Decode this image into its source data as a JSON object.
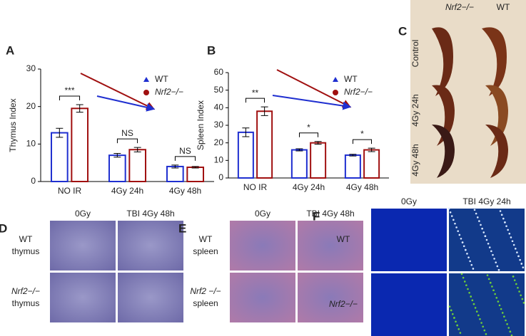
{
  "chart_data": [
    {
      "type": "bar",
      "panel": "A",
      "ylabel": "Thymus Index",
      "categories": [
        "NO IR",
        "4Gy 24h",
        "4Gy 48h"
      ],
      "series": [
        {
          "name": "WT",
          "color": "#1f2fd0",
          "values": [
            13,
            7,
            4
          ],
          "errors": [
            1.2,
            0.5,
            0.4
          ]
        },
        {
          "name": "Nrf2−/−",
          "color": "#a01010",
          "values": [
            19.5,
            8.5,
            3.8
          ],
          "errors": [
            1.0,
            0.6,
            0.2
          ]
        }
      ],
      "annotations": [
        "***",
        "NS",
        "NS"
      ],
      "ylim": [
        0,
        30
      ],
      "yticks": [
        0,
        10,
        20,
        30
      ]
    },
    {
      "type": "bar",
      "panel": "B",
      "ylabel": "Spleen Index",
      "categories": [
        "NO IR",
        "4Gy 24h",
        "4Gy 48h"
      ],
      "series": [
        {
          "name": "WT",
          "color": "#1f2fd0",
          "values": [
            26,
            16,
            13
          ],
          "errors": [
            2.5,
            0.6,
            0.5
          ]
        },
        {
          "name": "Nrf2−/−",
          "color": "#a01010",
          "values": [
            38,
            20,
            16
          ],
          "errors": [
            2.5,
            0.8,
            1.0
          ]
        }
      ],
      "annotations": [
        "**",
        "*",
        "*"
      ],
      "ylim": [
        0,
        60
      ],
      "yticks": [
        0,
        10,
        20,
        30,
        40,
        50,
        60
      ]
    }
  ],
  "panel_c": {
    "label": "C",
    "columns": [
      "Nrf2−/−",
      "WT"
    ],
    "rows": [
      "Control",
      "4Gy 24h",
      "4Gy 48h"
    ]
  },
  "panel_d": {
    "label": "D",
    "columns": [
      "0Gy",
      "TBI 4Gy 48h"
    ],
    "rows": [
      [
        "WT",
        "thymus"
      ],
      [
        "Nrf2−/−",
        "thymus"
      ]
    ]
  },
  "panel_e": {
    "label": "E",
    "columns": [
      "0Gy",
      "TBI 4Gy 48h"
    ],
    "rows": [
      [
        "WT",
        "spleen"
      ],
      [
        "Nrf2 −/−",
        "spleen"
      ]
    ]
  },
  "panel_f": {
    "label": "F",
    "columns": [
      "0Gy",
      "TBI 4Gy 24h"
    ],
    "rows": [
      "WT",
      "Nrf2−/−"
    ]
  }
}
